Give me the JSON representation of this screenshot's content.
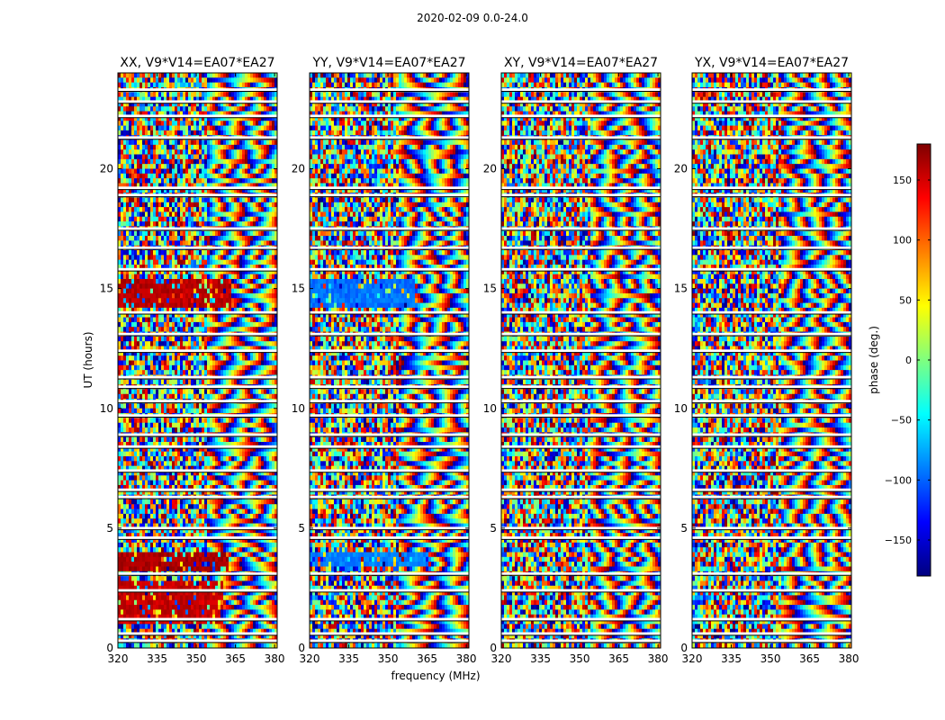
{
  "figure": {
    "suptitle": "2020-02-09 0.0-24.0"
  },
  "chart_data": {
    "type": "heatmap",
    "colormap": "jet",
    "xlabel": "frequency (MHz)",
    "ylabel": "UT (hours)",
    "xlim": [
      320,
      381
    ],
    "ylim": [
      0,
      24
    ],
    "xticks": [
      320,
      335,
      350,
      365,
      380
    ],
    "yticks": [
      0,
      5,
      10,
      15,
      20
    ],
    "panels": [
      {
        "title": "XX, V9*V14=EA07*EA27",
        "pol": "XX",
        "features": [
          {
            "t0": 3.3,
            "t1": 3.9,
            "f1": 362,
            "value": 165
          },
          {
            "t0": 14.2,
            "t1": 15.3,
            "f1": 363,
            "value": 160
          },
          {
            "t0": 1.0,
            "t1": 2.8,
            "f1": 360,
            "value": 155
          }
        ]
      },
      {
        "title": "YY, V9*V14=EA07*EA27",
        "pol": "YY",
        "features": [
          {
            "t0": 14.3,
            "t1": 15.3,
            "f1": 360,
            "value": -95
          },
          {
            "t0": 3.4,
            "t1": 3.9,
            "f1": 365,
            "value": -90
          }
        ]
      },
      {
        "title": "XY, V9*V14=EA07*EA27",
        "pol": "XY",
        "features": []
      },
      {
        "title": "YX, V9*V14=EA07*EA27",
        "pol": "YX",
        "features": []
      }
    ],
    "flagged_hours": [
      23.3,
      22.8,
      22.2,
      21.3,
      19.2,
      18.9,
      17.5,
      16.7,
      15.8,
      14.0,
      13.1,
      12.4,
      11.3,
      10.9,
      10.3,
      9.7,
      8.9,
      8.4,
      7.4,
      6.6,
      6.3,
      5.0,
      4.6,
      3.1,
      2.4,
      1.2,
      0.6,
      0.3
    ],
    "colorbar": {
      "label": "phase (deg.)",
      "range": [
        -180,
        180
      ],
      "ticks": [
        150,
        100,
        50,
        0,
        -50,
        -100,
        -150
      ]
    }
  }
}
